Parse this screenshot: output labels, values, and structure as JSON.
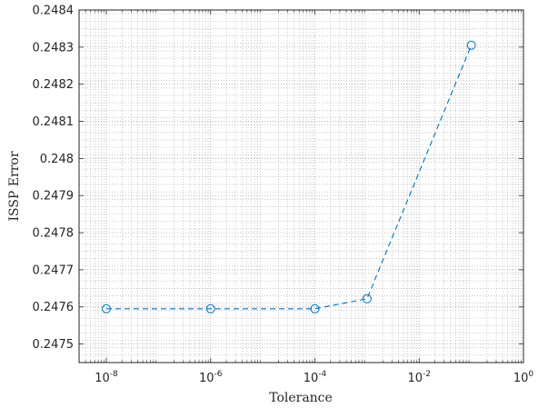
{
  "chart_data": {
    "type": "line",
    "xlabel": "Tolerance",
    "ylabel": "ISSP Error",
    "x_scale": "log",
    "xlim": [
      3e-09,
      1
    ],
    "ylim": [
      0.24745,
      0.2484
    ],
    "x_ticks": [
      {
        "value": 1e-08,
        "base": "10",
        "exp": "-8"
      },
      {
        "value": 1e-06,
        "base": "10",
        "exp": "-6"
      },
      {
        "value": 0.0001,
        "base": "10",
        "exp": "-4"
      },
      {
        "value": 0.01,
        "base": "10",
        "exp": "-2"
      },
      {
        "value": 1,
        "base": "10",
        "exp": "0"
      }
    ],
    "y_ticks": [
      {
        "value": 0.2475,
        "label": "0.2475"
      },
      {
        "value": 0.2476,
        "label": "0.2476"
      },
      {
        "value": 0.2477,
        "label": "0.2477"
      },
      {
        "value": 0.2478,
        "label": "0.2478"
      },
      {
        "value": 0.2479,
        "label": "0.2479"
      },
      {
        "value": 0.248,
        "label": "0.248"
      },
      {
        "value": 0.2481,
        "label": "0.2481"
      },
      {
        "value": 0.2482,
        "label": "0.2482"
      },
      {
        "value": 0.2483,
        "label": "0.2483"
      },
      {
        "value": 0.2484,
        "label": "0.2484"
      }
    ],
    "grid": true,
    "minor_grid": true,
    "series": [
      {
        "line_style": "dashed",
        "marker": "circle",
        "color": "#0072BD",
        "x": [
          1e-08,
          1e-06,
          0.0001,
          0.001,
          0.1
        ],
        "y": [
          0.247595,
          0.247595,
          0.247595,
          0.247622,
          0.248305
        ]
      }
    ]
  }
}
